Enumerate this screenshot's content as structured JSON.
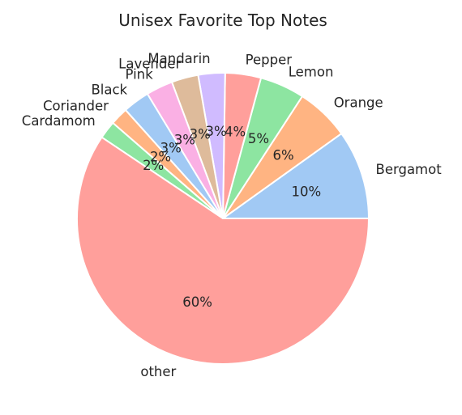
{
  "chart_data": {
    "type": "pie",
    "title": "Unisex Favorite Top Notes",
    "categories": [
      "Bergamot",
      "Orange",
      "Lemon",
      "Pepper",
      "Mandarin",
      "Lavender",
      "Pink",
      "Black",
      "Coriander",
      "Cardamom",
      "other"
    ],
    "values": [
      10,
      6,
      5,
      4,
      3,
      3,
      3,
      3,
      2,
      2,
      60
    ],
    "value_labels": [
      "10%",
      "6%",
      "5%",
      "4%",
      "3%",
      "3%",
      "3%",
      "3%",
      "2%",
      "2%",
      "60%"
    ],
    "colors": [
      "#a1c9f4",
      "#ffb482",
      "#8de5a1",
      "#ff9f9b",
      "#d0bbff",
      "#debb9b",
      "#fab0e4",
      "#a1c9f4",
      "#ffb482",
      "#8de5a1",
      "#ff9f9b"
    ],
    "start_angle_deg": 0,
    "direction": "counterclockwise",
    "legend": "none"
  }
}
